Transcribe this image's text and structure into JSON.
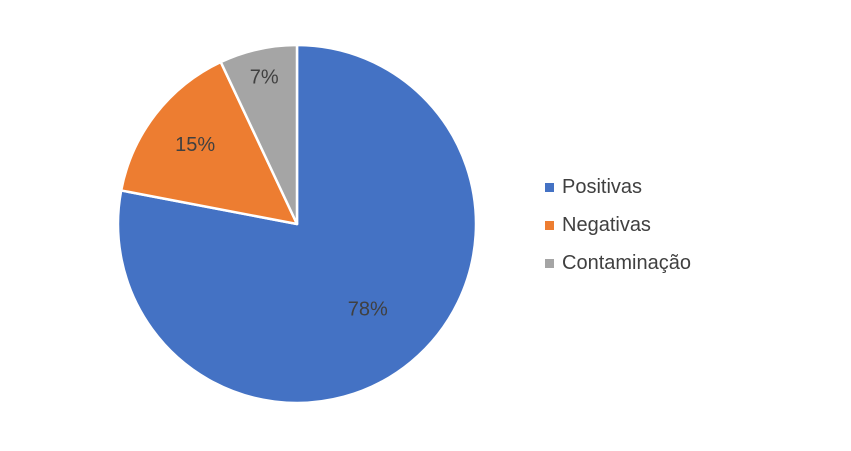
{
  "chart_data": {
    "type": "pie",
    "title": "",
    "categories": [
      "Positivas",
      "Negativas",
      "Contaminação"
    ],
    "values": [
      78,
      15,
      7
    ],
    "data_labels": [
      "78%",
      "15%",
      "7%"
    ],
    "colors": [
      "#4472C4",
      "#ED7D31",
      "#A5A5A5"
    ],
    "legend_position": "right",
    "start_angle": "12 o'clock, clockwise"
  }
}
